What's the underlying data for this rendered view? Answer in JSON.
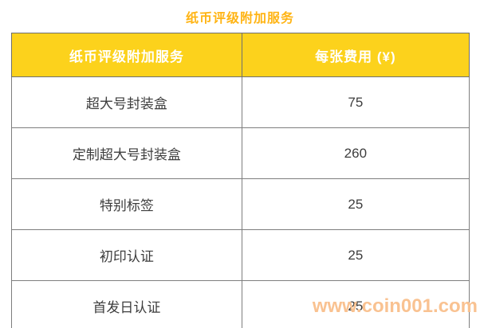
{
  "page": {
    "background": "#ffffff"
  },
  "title": {
    "text": "纸币评级附加服务",
    "color": "#FFB414"
  },
  "table": {
    "header": {
      "col1": "纸币评级附加服务",
      "col2": "每张费用 (¥)",
      "bg": "#FCD21C",
      "text_color": "#ffffff"
    },
    "rows": [
      {
        "service": "超大号封装盒",
        "fee": "75"
      },
      {
        "service": "定制超大号封装盒",
        "fee": "260"
      },
      {
        "service": "特别标签",
        "fee": "25"
      },
      {
        "service": "初印认证",
        "fee": "25"
      },
      {
        "service": "首发日认证",
        "fee": "25"
      }
    ],
    "border_color": "#7e7e7e"
  },
  "watermark": {
    "text": "www.coin001.com",
    "color": "#F9C291"
  },
  "chart_data": {
    "type": "table",
    "title": "纸币评级附加服务",
    "columns": [
      "纸币评级附加服务",
      "每张费用 (¥)"
    ],
    "rows": [
      [
        "超大号封装盒",
        75
      ],
      [
        "定制超大号封装盒",
        260
      ],
      [
        "特别标签",
        25
      ],
      [
        "初印认证",
        25
      ],
      [
        "首发日认证",
        25
      ]
    ]
  }
}
